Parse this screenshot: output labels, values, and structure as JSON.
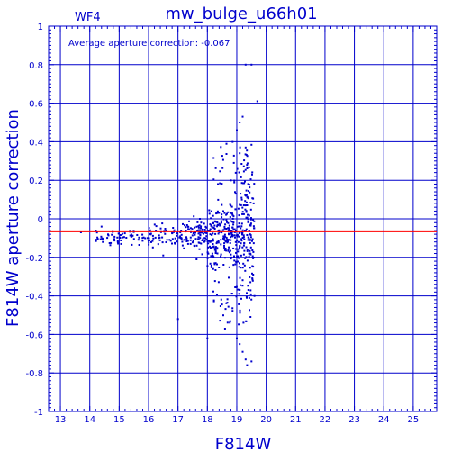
{
  "chart_data": {
    "type": "scatter",
    "title": "mw_bulge_u66h01",
    "chip_label": "WF4",
    "annotation": "Average aperture correction:  -0.067",
    "xlabel": "F814W",
    "ylabel": "F814W aperture correction",
    "xlim": [
      12.6,
      25.8
    ],
    "ylim": [
      -1,
      1
    ],
    "xticks": [
      "13",
      "14",
      "15",
      "16",
      "17",
      "18",
      "19",
      "20",
      "21",
      "22",
      "23",
      "24",
      "25"
    ],
    "yticks": [
      "-1",
      "-0.8",
      "-0.6",
      "-0.4",
      "-0.2",
      "0",
      "0.2",
      "0.4",
      "0.6",
      "0.8",
      "1"
    ],
    "grid": true,
    "average_line": -0.067,
    "colors": {
      "axes": "#0000cc",
      "points": "#0000cc",
      "average_line": "#ff0000"
    }
  }
}
